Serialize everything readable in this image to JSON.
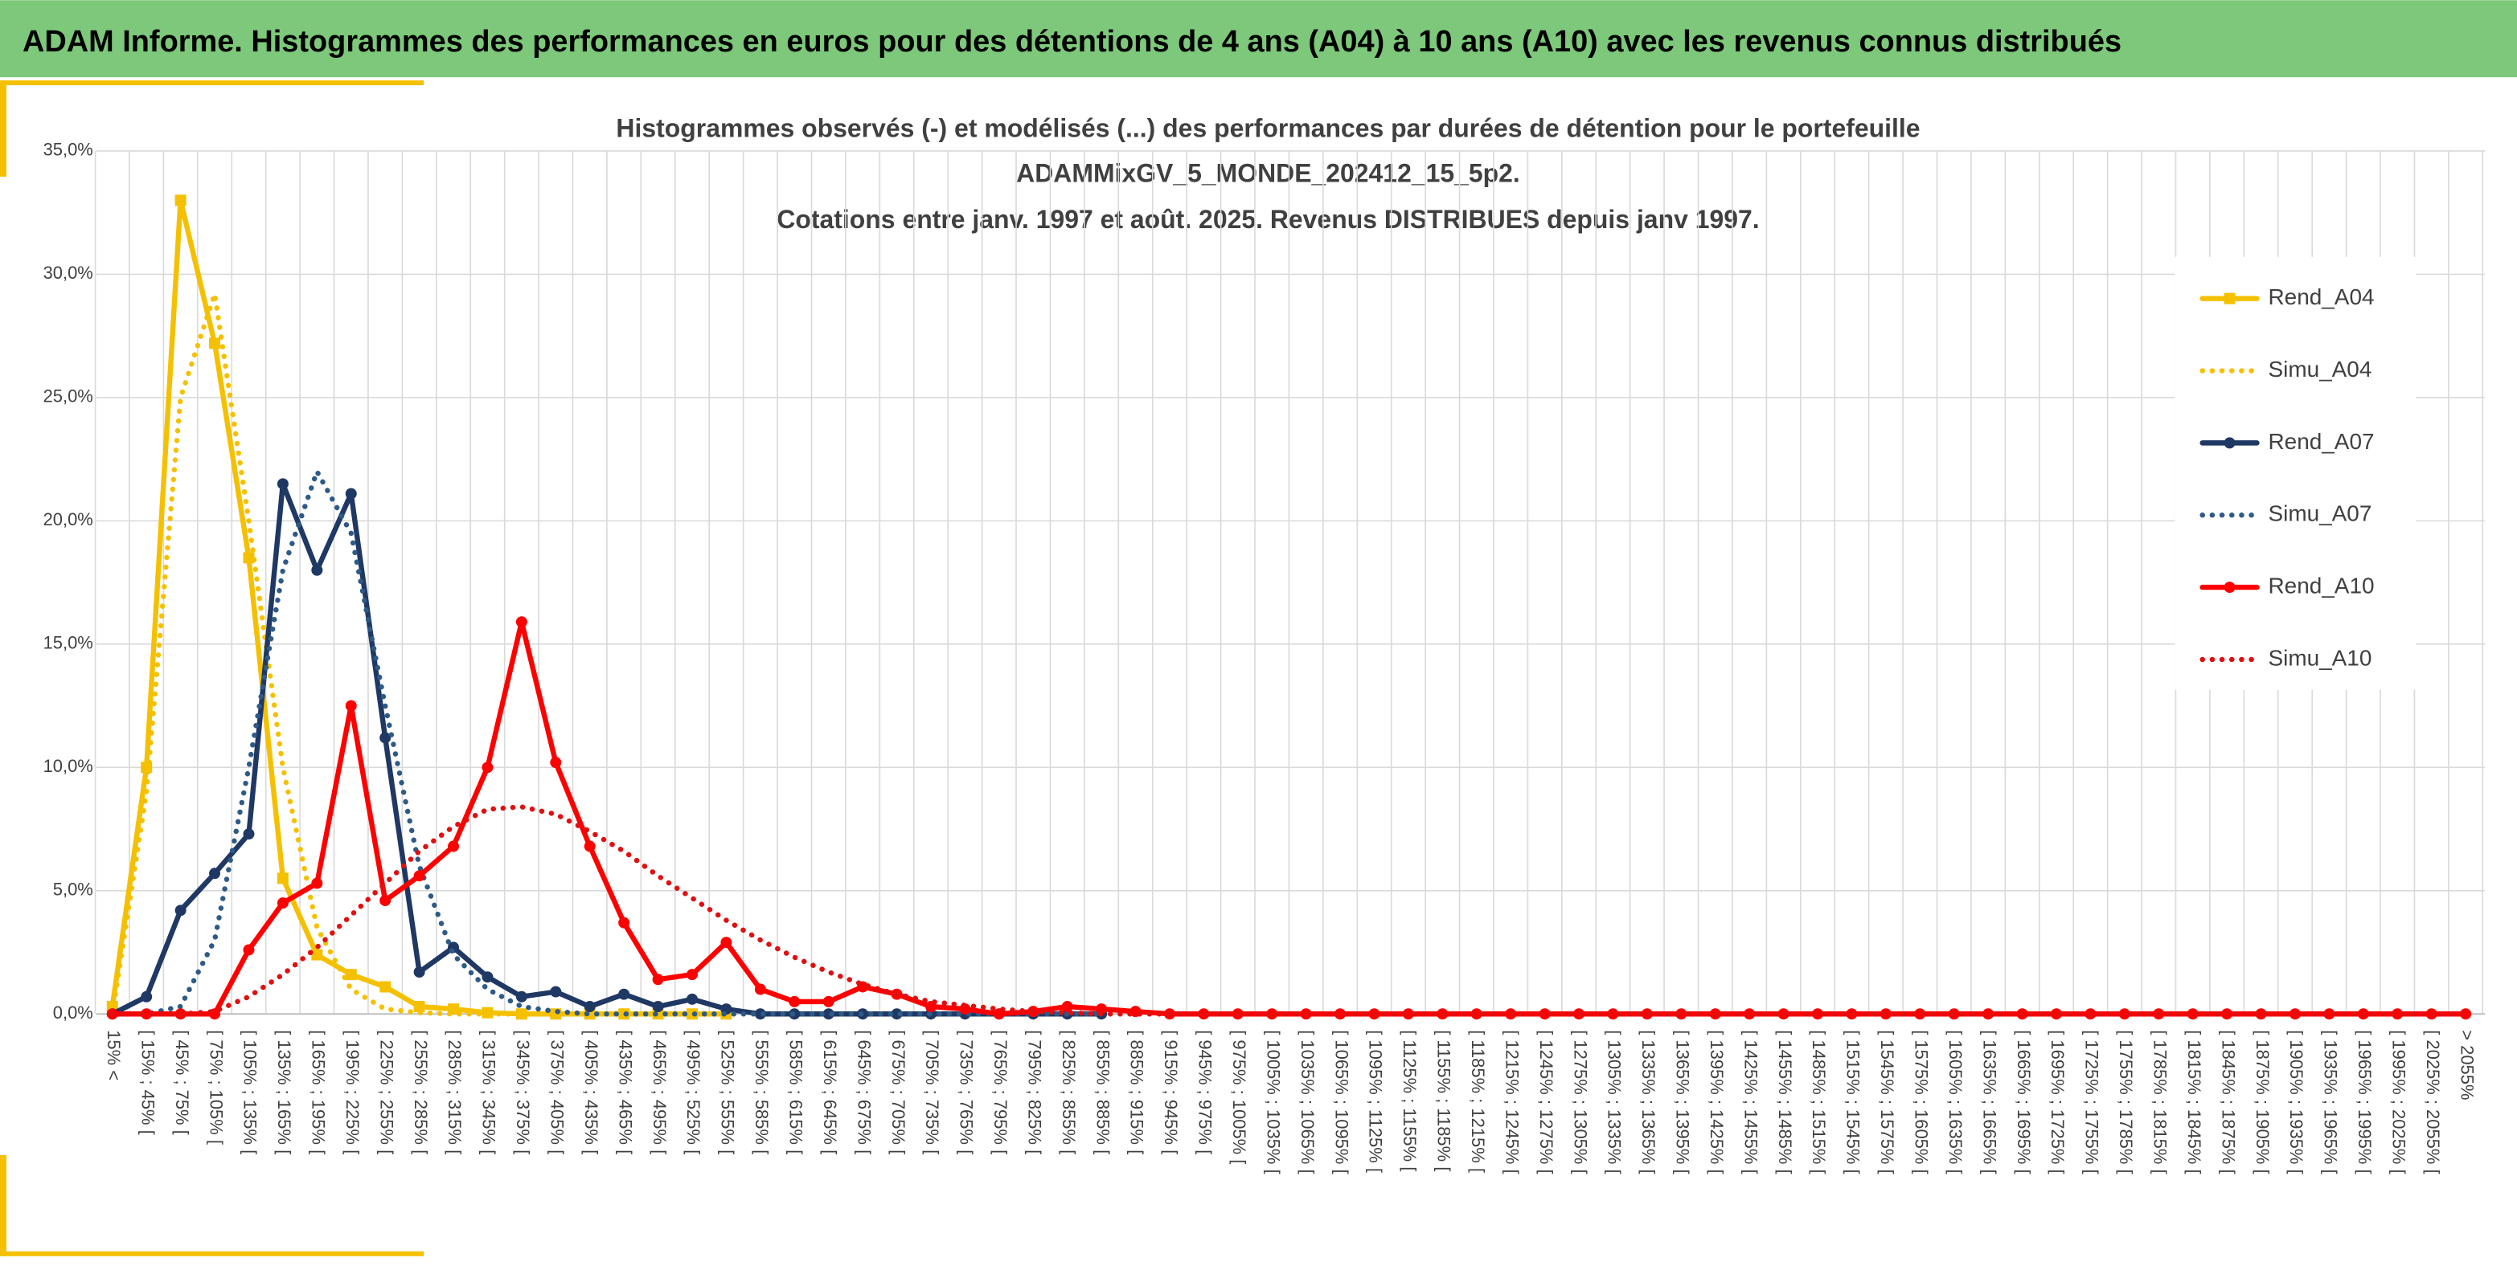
{
  "header": {
    "title": "ADAM Informe. Histogrammes des performances en euros pour des détentions de 4 ans (A04) à 10 ans (A10) avec les revenus connus distribués"
  },
  "chart_data": {
    "type": "line",
    "title": [
      "Histogrammes observés (-) et modélisés (...) des performances par durées de détention pour le portefeuille",
      "ADAMMixGV_5_MONDE_202412_15_5p2.",
      "Cotations entre janv. 1997 et août. 2025. Revenus DISTRIBUES depuis janv 1997."
    ],
    "categories": [
      "15% <",
      "[ 15% ; 45% [",
      "[ 45% ; 75% [",
      "[ 75% ; 105% [",
      "[ 105% ; 135% [",
      "[ 135% ; 165% [",
      "[ 165% ; 195% [",
      "[ 195% ; 225% [",
      "[ 225% ; 255% [",
      "[ 255% ; 285% [",
      "[ 285% ; 315% [",
      "[ 315% ; 345% [",
      "[ 345% ; 375% [",
      "[ 375% ; 405% [",
      "[ 405% ; 435% [",
      "[ 435% ; 465% [",
      "[ 465% ; 495% [",
      "[ 495% ; 525% [",
      "[ 525% ; 555% [",
      "[ 555% ; 585% [",
      "[ 585% ; 615% [",
      "[ 615% ; 645% [",
      "[ 645% ; 675% [",
      "[ 675% ; 705% [",
      "[ 705% ; 735% [",
      "[ 735% ; 765% [",
      "[ 765% ; 795% [",
      "[ 795% ; 825% [",
      "[ 825% ; 855% [",
      "[ 855% ; 885% [",
      "[ 885% ; 915% [",
      "[ 915% ; 945% [",
      "[ 945% ; 975% [",
      "[ 975% ; 1005% [",
      "[ 1005% ; 1035% [",
      "[ 1035% ; 1065% [",
      "[ 1065% ; 1095% [",
      "[ 1095% ; 1125% [",
      "[ 1125% ; 1155% [",
      "[ 1155% ; 1185% [",
      "[ 1185% ; 1215% [",
      "[ 1215% ; 1245% [",
      "[ 1245% ; 1275% [",
      "[ 1275% ; 1305% [",
      "[ 1305% ; 1335% [",
      "[ 1335% ; 1365% [",
      "[ 1365% ; 1395% [",
      "[ 1395% ; 1425% [",
      "[ 1425% ; 1455% [",
      "[ 1455% ; 1485% [",
      "[ 1485% ; 1515% [",
      "[ 1515% ; 1545% [",
      "[ 1545% ; 1575% [",
      "[ 1575% ; 1605% [",
      "[ 1605% ; 1635% [",
      "[ 1635% ; 1665% [",
      "[ 1665% ; 1695% [",
      "[ 1695% ; 1725% [",
      "[ 1725% ; 1755% [",
      "[ 1755% ; 1785% [",
      "[ 1785% ; 1815% [",
      "[ 1815% ; 1845% [",
      "[ 1845% ; 1875% [",
      "[ 1875% ; 1905% [",
      "[ 1905% ; 1935% [",
      "[ 1935% ; 1965% [",
      "[ 1965% ; 1995% [",
      "[ 1995% ; 2025% [",
      "[ 2025% ; 2055% [",
      "> 2055%"
    ],
    "series": [
      {
        "name": "Rend_A04",
        "color": "#f5c000",
        "dashed": false,
        "marker": "square",
        "values": [
          0.3,
          10,
          33,
          27.2,
          18.5,
          5.5,
          2.4,
          1.6,
          1.1,
          0.3,
          0.2,
          0.05,
          0,
          0,
          0,
          0,
          0,
          0,
          0,
          null,
          null,
          null,
          null,
          null,
          null,
          null,
          null,
          null,
          null,
          null,
          null,
          null,
          null,
          null,
          null,
          null,
          null,
          null,
          null,
          null,
          null,
          null,
          null,
          null,
          null,
          null,
          null,
          null,
          null,
          null,
          null,
          null,
          null,
          null,
          null,
          null,
          null,
          null,
          null,
          null,
          null,
          null,
          null,
          null,
          null,
          null,
          null,
          null,
          null,
          null
        ]
      },
      {
        "name": "Simu_A04",
        "color": "#f5c000",
        "dashed": true,
        "marker": null,
        "values": [
          0,
          9,
          25,
          29.2,
          20,
          10,
          3.5,
          1,
          0.2,
          0.05,
          0,
          0,
          0,
          0,
          0,
          0,
          0,
          0,
          0,
          null,
          null,
          null,
          null,
          null,
          null,
          null,
          null,
          null,
          null,
          null,
          null,
          null,
          null,
          null,
          null,
          null,
          null,
          null,
          null,
          null,
          null,
          null,
          null,
          null,
          null,
          null,
          null,
          null,
          null,
          null,
          null,
          null,
          null,
          null,
          null,
          null,
          null,
          null,
          null,
          null,
          null,
          null,
          null,
          null,
          null,
          null,
          null,
          null,
          null,
          null
        ]
      },
      {
        "name": "Rend_A07",
        "color": "#1f3864",
        "dashed": false,
        "marker": "circle",
        "values": [
          0,
          0.7,
          4.2,
          5.7,
          7.3,
          21.5,
          18,
          21.1,
          11.2,
          1.7,
          2.7,
          1.5,
          0.7,
          0.9,
          0.3,
          0.8,
          0.3,
          0.6,
          0.2,
          0,
          0,
          0,
          0,
          0,
          0,
          0,
          0,
          0,
          0,
          0,
          null,
          null,
          null,
          null,
          null,
          null,
          null,
          null,
          null,
          null,
          null,
          null,
          null,
          null,
          null,
          null,
          null,
          null,
          null,
          null,
          null,
          null,
          null,
          null,
          null,
          null,
          null,
          null,
          null,
          null,
          null,
          null,
          null,
          null,
          null,
          null,
          null,
          null,
          null,
          null
        ]
      },
      {
        "name": "Simu_A07",
        "color": "#2e5a88",
        "dashed": true,
        "marker": null,
        "values": [
          0,
          0,
          0.3,
          3,
          10,
          18,
          22,
          19.5,
          12.5,
          6,
          2.4,
          1,
          0.3,
          0.1,
          0,
          0,
          0,
          0,
          0,
          0,
          0,
          0,
          0,
          0,
          0,
          0,
          0,
          0,
          0,
          0,
          null,
          null,
          null,
          null,
          null,
          null,
          null,
          null,
          null,
          null,
          null,
          null,
          null,
          null,
          null,
          null,
          null,
          null,
          null,
          null,
          null,
          null,
          null,
          null,
          null,
          null,
          null,
          null,
          null,
          null,
          null,
          null,
          null,
          null,
          null,
          null,
          null,
          null,
          null,
          null
        ]
      },
      {
        "name": "Rend_A10",
        "color": "#ff0000",
        "dashed": false,
        "marker": "circle",
        "values": [
          0,
          0,
          0,
          0,
          2.6,
          4.5,
          5.3,
          12.5,
          4.6,
          5.6,
          6.8,
          10,
          15.9,
          10.2,
          6.8,
          3.7,
          1.4,
          1.6,
          2.9,
          1,
          0.5,
          0.5,
          1.1,
          0.8,
          0.3,
          0.2,
          0,
          0.1,
          0.3,
          0.2,
          0.1,
          0,
          0,
          0,
          0,
          0,
          0,
          0,
          0,
          0,
          0,
          0,
          0,
          0,
          0,
          0,
          0,
          0,
          0,
          0,
          0,
          0,
          0,
          0,
          0,
          0,
          0,
          0,
          0,
          0,
          0,
          0,
          0,
          0,
          0,
          0,
          0,
          0,
          0,
          0
        ]
      },
      {
        "name": "Simu_A10",
        "color": "#e01010",
        "dashed": true,
        "marker": null,
        "values": [
          0,
          0,
          0,
          0.1,
          0.7,
          1.6,
          2.7,
          4,
          5.3,
          6.6,
          7.6,
          8.3,
          8.4,
          8.1,
          7.4,
          6.6,
          5.6,
          4.7,
          3.8,
          3,
          2.3,
          1.7,
          1.2,
          0.8,
          0.5,
          0.35,
          0.2,
          0.1,
          0.05,
          0,
          0,
          0,
          0,
          0,
          0,
          0,
          0,
          0,
          0,
          0,
          0,
          0,
          0,
          0,
          0,
          0,
          0,
          0,
          0,
          0,
          0,
          0,
          0,
          0,
          0,
          0,
          0,
          0,
          0,
          0,
          0,
          0,
          0,
          0,
          0,
          0,
          0,
          0,
          0,
          0
        ]
      }
    ],
    "ylim": [
      0,
      35
    ],
    "yticks": [
      {
        "value": 0,
        "label": "0,0%"
      },
      {
        "value": 5,
        "label": "5,0%"
      },
      {
        "value": 10,
        "label": "10,0%"
      },
      {
        "value": 15,
        "label": "15,0%"
      },
      {
        "value": 20,
        "label": "20,0%"
      },
      {
        "value": 25,
        "label": "25,0%"
      },
      {
        "value": 30,
        "label": "30,0%"
      },
      {
        "value": 35,
        "label": "35,0%"
      }
    ],
    "grid": true,
    "legend": "right"
  }
}
